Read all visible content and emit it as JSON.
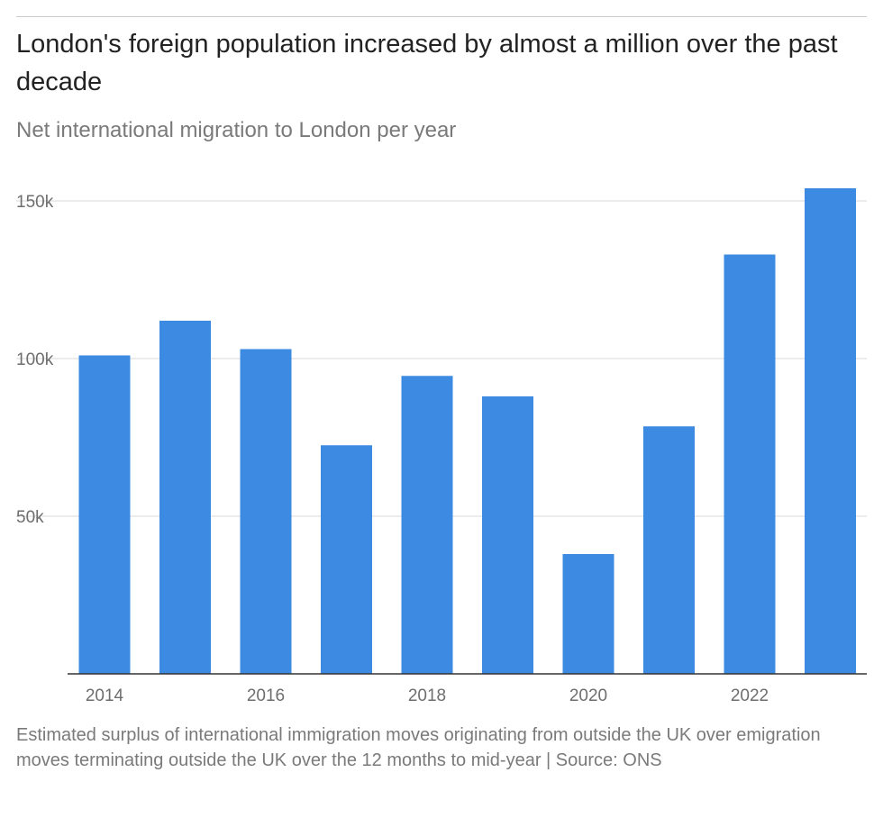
{
  "title": "London's foreign population increased by almost a million over the past decade",
  "subtitle": "Net international migration to London per year",
  "footnote": "Estimated surplus of international immigration moves originating from outside the UK over emigration moves terminating outside the UK over the 12 months to mid-year | Source: ONS",
  "colors": {
    "bar": "#3d8ae2",
    "grid": "#d9d9d9",
    "axis": "#333333"
  },
  "chart_data": {
    "type": "bar",
    "categories": [
      "2014",
      "2015",
      "2016",
      "2017",
      "2018",
      "2019",
      "2020",
      "2021",
      "2022",
      "2023"
    ],
    "values": [
      101000,
      112000,
      103000,
      72500,
      94500,
      88000,
      38000,
      78500,
      133000,
      154000
    ],
    "x_tick_labels": [
      "2014",
      "2016",
      "2018",
      "2020",
      "2022"
    ],
    "y_ticks": [
      {
        "value": 50000,
        "label": "50k"
      },
      {
        "value": 100000,
        "label": "100k"
      },
      {
        "value": 150000,
        "label": "150k"
      }
    ],
    "ylim": [
      0,
      150000
    ],
    "grid": true,
    "legend": "none"
  }
}
